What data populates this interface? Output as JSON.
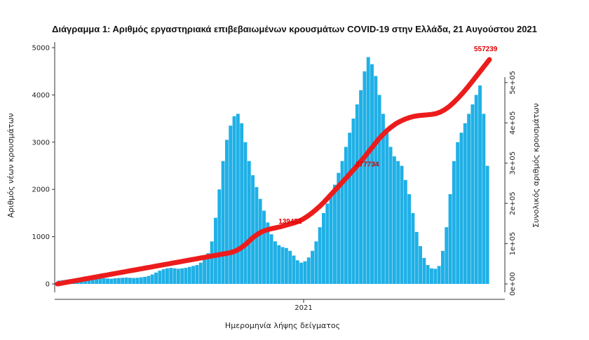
{
  "chart_data": {
    "type": "bar",
    "title": "Διάγραμμα 1: Αριθμός εργαστηριακά επιβεβαιωμένων κρουσμάτων COVID-19 στην Ελλάδα, 21 Αυγούστου 2021",
    "xlabel": "Ημερομηνία λήψης δείγματος",
    "ylabel": "Αριθμός νέων κρουσμάτων",
    "y2label": "Συνολικός αριθμός κρουσμάτων",
    "ylim": [
      0,
      5000
    ],
    "y2lim": [
      0,
      557239
    ],
    "yticks": [
      "0",
      "1000",
      "2000",
      "3000",
      "4000",
      "5000"
    ],
    "y2ticks": [
      "0e+00",
      "1e+05",
      "2e+05",
      "3e+05",
      "4e+05",
      "5e+05"
    ],
    "xticks": [
      "2021"
    ],
    "grid": false,
    "colors": {
      "bars": "#1fb0e6",
      "cumulative": "#ec1c1c",
      "annotation": "#e10000"
    },
    "annotations": [
      "139452",
      "277734",
      "557239"
    ],
    "series": [
      {
        "type": "bar",
        "values": [
          70,
          80,
          90,
          100,
          110,
          120,
          125,
          130,
          120,
          115,
          125,
          130,
          120,
          115,
          110,
          120,
          125,
          130,
          135,
          130,
          125,
          130,
          140,
          150,
          170,
          200,
          240,
          280,
          310,
          330,
          340,
          330,
          320,
          330,
          340,
          360,
          380,
          400,
          450,
          520,
          650,
          900,
          1400,
          2000,
          2600,
          3050,
          3350,
          3550,
          3600,
          3400,
          3000,
          2600,
          2300,
          2050,
          1800,
          1550,
          1300,
          1050,
          900,
          820,
          780,
          760,
          700,
          600,
          500,
          450,
          480,
          560,
          700,
          900,
          1200,
          1500,
          1700,
          1900,
          2100,
          2350,
          2600,
          2900,
          3200,
          3500,
          3800,
          4100,
          4500,
          4800,
          4650,
          4400,
          4000,
          3600,
          3200,
          2900,
          2700,
          2600,
          2500,
          2200,
          1900,
          1500,
          1100,
          800,
          550,
          400,
          330,
          320,
          380,
          700,
          1200,
          1900,
          2600,
          3000,
          3200,
          3400,
          3600,
          3800,
          4000,
          4200,
          3600,
          2500
        ]
      },
      {
        "type": "line",
        "values": [
          0,
          2000,
          4000,
          6000,
          8000,
          10000,
          12000,
          14000,
          16000,
          18000,
          20000,
          22000,
          24000,
          26000,
          28000,
          30000,
          32000,
          34000,
          36000,
          38000,
          40000,
          42000,
          44000,
          46000,
          48000,
          50000,
          52000,
          54000,
          56000,
          58000,
          60000,
          62000,
          64000,
          66000,
          68000,
          70000,
          72000,
          74000,
          76000,
          78000,
          82000,
          88000,
          96000,
          106000,
          116000,
          124000,
          130000,
          134000,
          137000,
          139452,
          142000,
          145000,
          148000,
          151000,
          155000,
          160000,
          167000,
          175000,
          184000,
          194000,
          205000,
          217000,
          229000,
          241000,
          253000,
          265000,
          277734,
          290000,
          303000,
          316000,
          330000,
          344000,
          358000,
          370000,
          381000,
          390000,
          398000,
          404000,
          409000,
          413000,
          416000,
          418000,
          419000,
          420000,
          421000,
          423000,
          427000,
          433000,
          441000,
          451000,
          462000,
          474000,
          487000,
          501000,
          515000,
          529000,
          543000,
          557239
        ]
      }
    ]
  }
}
